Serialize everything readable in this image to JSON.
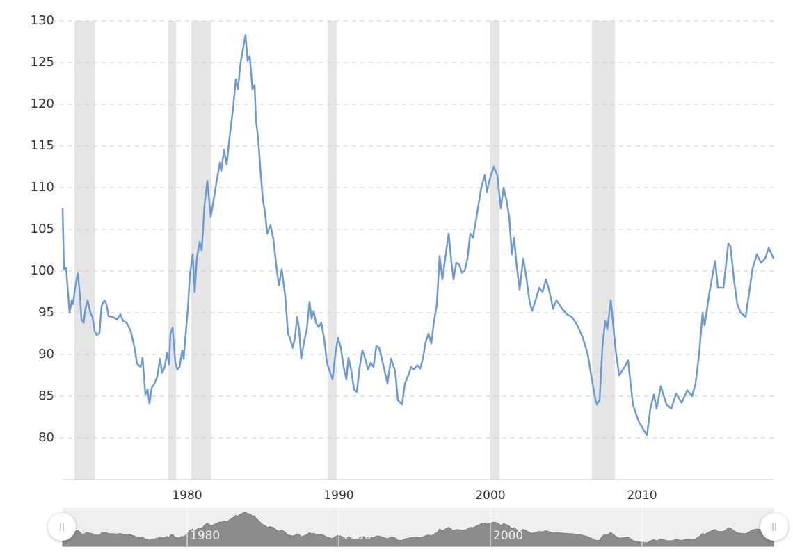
{
  "chart_data": {
    "type": "line",
    "x": [
      1971.79,
      1971.88,
      1972.02,
      1972.25,
      1972.39,
      1972.48,
      1972.61,
      1972.8,
      1972.94,
      1973.03,
      1973.17,
      1973.3,
      1973.44,
      1973.62,
      1973.76,
      1973.9,
      1974.04,
      1974.22,
      1974.36,
      1974.54,
      1974.68,
      1974.82,
      1975.09,
      1975.37,
      1975.6,
      1975.78,
      1976.01,
      1976.28,
      1976.51,
      1976.7,
      1976.93,
      1977.06,
      1977.25,
      1977.39,
      1977.52,
      1977.66,
      1977.84,
      1978.03,
      1978.21,
      1978.35,
      1978.53,
      1978.67,
      1978.81,
      1978.9,
      1979.04,
      1979.22,
      1979.36,
      1979.5,
      1979.68,
      1979.77,
      1979.91,
      1980.05,
      1980.18,
      1980.37,
      1980.5,
      1980.64,
      1980.83,
      1980.96,
      1981.15,
      1981.33,
      1981.56,
      1981.79,
      1981.97,
      1982.16,
      1982.25,
      1982.43,
      1982.61,
      1982.8,
      1983.03,
      1983.21,
      1983.35,
      1983.53,
      1983.85,
      1983.99,
      1984.13,
      1984.31,
      1984.45,
      1984.54,
      1984.68,
      1984.86,
      1985.0,
      1985.14,
      1985.28,
      1985.5,
      1985.69,
      1985.83,
      1985.92,
      1986.06,
      1986.24,
      1986.47,
      1986.65,
      1986.79,
      1986.97,
      1987.11,
      1987.25,
      1987.39,
      1987.52,
      1987.71,
      1987.89,
      1988.07,
      1988.21,
      1988.35,
      1988.49,
      1988.67,
      1988.85,
      1989.04,
      1989.22,
      1989.4,
      1989.59,
      1989.77,
      1989.95,
      1990.14,
      1990.32,
      1990.5,
      1990.64,
      1990.83,
      1991.01,
      1991.19,
      1991.38,
      1991.56,
      1991.74,
      1991.93,
      1992.11,
      1992.29,
      1992.48,
      1992.66,
      1992.84,
      1993.03,
      1993.21,
      1993.44,
      1993.72,
      1993.9,
      1994.17,
      1994.36,
      1994.59,
      1994.77,
      1994.95,
      1995.18,
      1995.37,
      1995.55,
      1995.73,
      1995.92,
      1996.1,
      1996.28,
      1996.47,
      1996.65,
      1996.83,
      1997.02,
      1997.25,
      1997.43,
      1997.57,
      1997.75,
      1997.94,
      1998.12,
      1998.3,
      1998.49,
      1998.67,
      1998.85,
      1999.04,
      1999.22,
      1999.4,
      1999.63,
      1999.77,
      1999.95,
      2000.23,
      2000.46,
      2000.69,
      2000.87,
      2001.06,
      2001.24,
      2001.42,
      2001.56,
      2001.74,
      2001.93,
      2002.16,
      2002.39,
      2002.57,
      2002.75,
      2002.98,
      2003.21,
      2003.44,
      2003.67,
      2003.9,
      2004.13,
      2004.36,
      2004.72,
      2005.05,
      2005.37,
      2005.73,
      2006.1,
      2006.42,
      2006.65,
      2006.88,
      2007.02,
      2007.2,
      2007.39,
      2007.57,
      2007.71,
      2007.94,
      2008.26,
      2008.49,
      2008.85,
      2009.08,
      2009.4,
      2009.77,
      2010.09,
      2010.32,
      2010.55,
      2010.78,
      2010.96,
      2011.24,
      2011.61,
      2011.93,
      2012.25,
      2012.61,
      2012.98,
      2013.3,
      2013.53,
      2013.76,
      2013.99,
      2014.13,
      2014.45,
      2014.82,
      2015.0,
      2015.37,
      2015.69,
      2015.83,
      2016.06,
      2016.28,
      2016.51,
      2016.83,
      2017.11,
      2017.29,
      2017.57,
      2017.84,
      2018.12,
      2018.35,
      2018.67
    ],
    "values": [
      107.5,
      100.2,
      100.4,
      95.0,
      96.5,
      96.0,
      98,
      99.7,
      97,
      94.2,
      93.8,
      95.5,
      96.5,
      95,
      94.5,
      92.8,
      92.3,
      92.6,
      95.8,
      96.5,
      96,
      94.6,
      94.5,
      94.2,
      94.8,
      94,
      93.8,
      92.8,
      91,
      88.9,
      88.5,
      89.6,
      85.2,
      85.8,
      84.1,
      86,
      86.5,
      87.3,
      89.5,
      87.8,
      88.5,
      90.2,
      88.8,
      92.5,
      93.2,
      89,
      88.2,
      88.5,
      90.5,
      89.5,
      92.5,
      95.5,
      99.5,
      102,
      97.5,
      101.5,
      103.5,
      102.5,
      108,
      110.8,
      106.5,
      109,
      111,
      113,
      112,
      114.5,
      112.8,
      116,
      119.5,
      123,
      121.8,
      125,
      128.3,
      125.2,
      125.8,
      121.8,
      122.3,
      118,
      116,
      111.5,
      108.5,
      107,
      104.5,
      105.5,
      103.8,
      101.5,
      100,
      98.3,
      100.2,
      97,
      92.5,
      91.9,
      90.8,
      92,
      94.5,
      93,
      89.5,
      91.5,
      93,
      96.3,
      94.3,
      95.2,
      93.8,
      93.3,
      93.8,
      91.8,
      89,
      88,
      87,
      90,
      92,
      90.8,
      88.5,
      87,
      89.6,
      88,
      85.8,
      85.5,
      88.5,
      90.5,
      89.5,
      88.2,
      89,
      88.5,
      91,
      90.8,
      89.5,
      88,
      86.5,
      89.5,
      88,
      84.5,
      84,
      86.5,
      87.5,
      88.5,
      88.2,
      88.7,
      88.3,
      89.5,
      91.5,
      92.5,
      91.3,
      94,
      96,
      101.8,
      99,
      101.5,
      104.5,
      101,
      99,
      101,
      100.8,
      99.8,
      100,
      101.5,
      104.5,
      104,
      106,
      108,
      110,
      111.5,
      109.5,
      111,
      112.5,
      111.5,
      107.5,
      110,
      108.5,
      106.5,
      102,
      104,
      100.5,
      97.8,
      101.5,
      99,
      96.5,
      95.2,
      96.5,
      98,
      97.5,
      99,
      97.5,
      95.5,
      96.5,
      95.5,
      94.8,
      94.5,
      93.5,
      92,
      90,
      87.5,
      85,
      84,
      84.5,
      91,
      94,
      93,
      96.5,
      90.5,
      87.5,
      88.5,
      89.3,
      84,
      82,
      81,
      80.3,
      83.5,
      85.2,
      83.5,
      86.2,
      84,
      83.5,
      85.3,
      84.2,
      85.7,
      85,
      86.5,
      90,
      95,
      93.5,
      97.5,
      101.2,
      98,
      98,
      103.3,
      103,
      99,
      96,
      95,
      94.5,
      98,
      100.3,
      102,
      101,
      101.5,
      102.8,
      101.5
    ],
    "color": "#6b9bd2",
    "recessions": [
      [
        1972.57,
        1973.9
      ],
      [
        1978.76,
        1979.27
      ],
      [
        1980.28,
        1981.61
      ],
      [
        1989.27,
        1989.86
      ],
      [
        1999.95,
        2000.6
      ],
      [
        2006.7,
        2008.21
      ]
    ],
    "recession_color": "#e5e5e5",
    "xlim": [
      1971.79,
      2018.67
    ],
    "xticks": [
      1980,
      1990,
      2000,
      2010
    ],
    "ylim": [
      75,
      130
    ],
    "yticks": [
      80,
      85,
      90,
      95,
      100,
      105,
      110,
      115,
      120,
      125,
      130
    ],
    "grid": true,
    "navigator": true
  }
}
